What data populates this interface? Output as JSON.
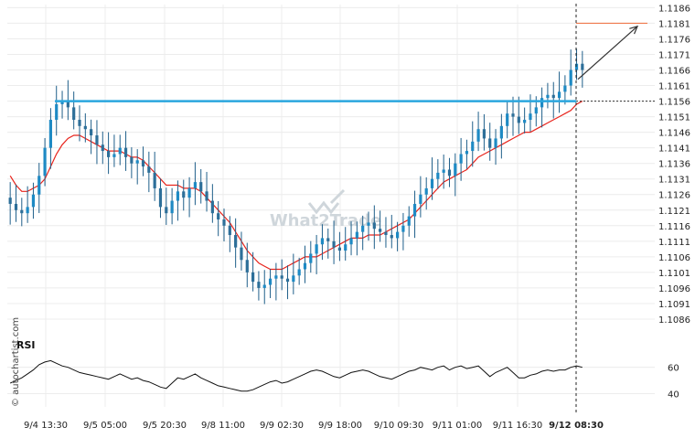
{
  "chart_data": {
    "type": "candlestick",
    "instrument_hint": "",
    "price_axis": {
      "ticks": [
        "1.1186",
        "1.1181",
        "1.1176",
        "1.1171",
        "1.1166",
        "1.1161",
        "1.1156",
        "1.1151",
        "1.1146",
        "1.1141",
        "1.1136",
        "1.1131",
        "1.1126",
        "1.1121",
        "1.1116",
        "1.1111",
        "1.1106",
        "1.1101",
        "1.1096",
        "1.1091",
        "1.1086"
      ],
      "range": [
        1.1081,
        1.1187
      ]
    },
    "time_axis": {
      "ticks": [
        "9/4 13:30",
        "9/5 05:00",
        "9/5 20:30",
        "9/8 11:00",
        "9/9 02:30",
        "9/9 18:00",
        "9/10 09:30",
        "9/11 01:00",
        "9/11 16:30",
        "9/12 08:30"
      ]
    },
    "resistance_level": 1.1156,
    "target_level": 1.1181,
    "close_series": [
      1.1123,
      1.1121,
      1.112,
      1.1122,
      1.1126,
      1.1132,
      1.1141,
      1.115,
      1.1155,
      1.1156,
      1.1154,
      1.115,
      1.1148,
      1.1147,
      1.1145,
      1.1142,
      1.114,
      1.1138,
      1.1139,
      1.1141,
      1.1138,
      1.1136,
      1.1137,
      1.1135,
      1.1133,
      1.1128,
      1.1122,
      1.112,
      1.1124,
      1.1127,
      1.1125,
      1.1128,
      1.113,
      1.1127,
      1.1124,
      1.112,
      1.1118,
      1.1116,
      1.1113,
      1.1109,
      1.1105,
      1.1101,
      1.1098,
      1.1096,
      1.1097,
      1.1099,
      1.11,
      1.1099,
      1.1098,
      1.11,
      1.1102,
      1.1104,
      1.1107,
      1.111,
      1.1112,
      1.1111,
      1.1109,
      1.1108,
      1.111,
      1.1112,
      1.1114,
      1.1116,
      1.1117,
      1.1115,
      1.1114,
      1.1113,
      1.1112,
      1.1114,
      1.1116,
      1.1119,
      1.1123,
      1.1126,
      1.1128,
      1.1131,
      1.1133,
      1.1134,
      1.1132,
      1.1136,
      1.1139,
      1.114,
      1.1143,
      1.1147,
      1.1144,
      1.1141,
      1.1144,
      1.1148,
      1.1152,
      1.1151,
      1.1149,
      1.115,
      1.1152,
      1.1154,
      1.1157,
      1.1158,
      1.1157,
      1.1159,
      1.1161,
      1.1166,
      1.1168,
      1.1166
    ],
    "ma_series": [
      1.1132,
      1.1129,
      1.1127,
      1.1127,
      1.1128,
      1.1129,
      1.1131,
      1.1135,
      1.1139,
      1.1142,
      1.1144,
      1.1145,
      1.1145,
      1.1144,
      1.1143,
      1.1142,
      1.1141,
      1.114,
      1.114,
      1.114,
      1.1139,
      1.1138,
      1.1138,
      1.1137,
      1.1135,
      1.1133,
      1.1131,
      1.1129,
      1.1129,
      1.1129,
      1.1128,
      1.1128,
      1.1128,
      1.1127,
      1.1125,
      1.1123,
      1.1121,
      1.1119,
      1.1117,
      1.1114,
      1.1111,
      1.1108,
      1.1106,
      1.1104,
      1.1103,
      1.1102,
      1.1102,
      1.1102,
      1.1103,
      1.1104,
      1.1105,
      1.1106,
      1.1106,
      1.1106,
      1.1107,
      1.1108,
      1.1109,
      1.111,
      1.1111,
      1.1112,
      1.1112,
      1.1112,
      1.1113,
      1.1113,
      1.1113,
      1.1114,
      1.1115,
      1.1116,
      1.1117,
      1.1118,
      1.112,
      1.1122,
      1.1124,
      1.1126,
      1.1128,
      1.113,
      1.1131,
      1.1132,
      1.1133,
      1.1134,
      1.1136,
      1.1138,
      1.1139,
      1.114,
      1.1141,
      1.1142,
      1.1143,
      1.1144,
      1.1145,
      1.1146,
      1.1146,
      1.1147,
      1.1148,
      1.1149,
      1.115,
      1.1151,
      1.1152,
      1.1153,
      1.1155,
      1.1156
    ],
    "rsi": {
      "title": "RSI",
      "ticks": [
        "60",
        "40"
      ],
      "range": [
        30,
        75
      ],
      "values": [
        48,
        50,
        52,
        55,
        58,
        62,
        64,
        65,
        63,
        61,
        60,
        58,
        56,
        55,
        54,
        53,
        52,
        51,
        53,
        55,
        53,
        51,
        52,
        50,
        49,
        47,
        45,
        44,
        48,
        52,
        51,
        53,
        55,
        52,
        50,
        48,
        46,
        45,
        44,
        43,
        42,
        42,
        43,
        45,
        47,
        49,
        50,
        48,
        49,
        51,
        53,
        55,
        57,
        58,
        57,
        55,
        53,
        52,
        54,
        56,
        57,
        58,
        57,
        55,
        53,
        52,
        51,
        53,
        55,
        57,
        58,
        60,
        59,
        58,
        60,
        61,
        58,
        60,
        61,
        59,
        60,
        61,
        57,
        53,
        56,
        58,
        60,
        56,
        52,
        52,
        54,
        55,
        57,
        58,
        57,
        58,
        58,
        60,
        61,
        60
      ]
    },
    "watermarks": {
      "center": "What2Trade",
      "side": "© autochartist.com"
    }
  }
}
